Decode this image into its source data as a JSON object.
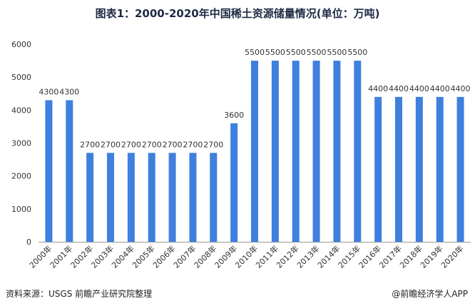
{
  "title": "图表1：2000-2020年中国稀土资源储量情况(单位：万吨)",
  "footer": {
    "source": "资料来源：USGS 前瞻产业研究院整理",
    "credit": "@前瞻经济学人APP"
  },
  "colors": {
    "bar": "#3f7fde",
    "axis": "#999999",
    "text": "#333333"
  },
  "chart_data": {
    "type": "bar",
    "title": "图表1：2000-2020年中国稀土资源储量情况(单位：万吨)",
    "xlabel": "",
    "ylabel": "",
    "ylim": [
      0,
      6000
    ],
    "yticks": [
      0,
      1000,
      2000,
      3000,
      4000,
      5000,
      6000
    ],
    "grid": false,
    "categories": [
      "2000年",
      "2001年",
      "2002年",
      "2003年",
      "2004年",
      "2005年",
      "2006年",
      "2007年",
      "2008年",
      "2009年",
      "2010年",
      "2011年",
      "2012年",
      "2013年",
      "2014年",
      "2015年",
      "2016年",
      "2017年",
      "2018年",
      "2019年",
      "2020年"
    ],
    "values": [
      4300,
      4300,
      2700,
      2700,
      2700,
      2700,
      2700,
      2700,
      2700,
      3600,
      5500,
      5500,
      5500,
      5500,
      5500,
      5500,
      4400,
      4400,
      4400,
      4400,
      4400
    ]
  }
}
